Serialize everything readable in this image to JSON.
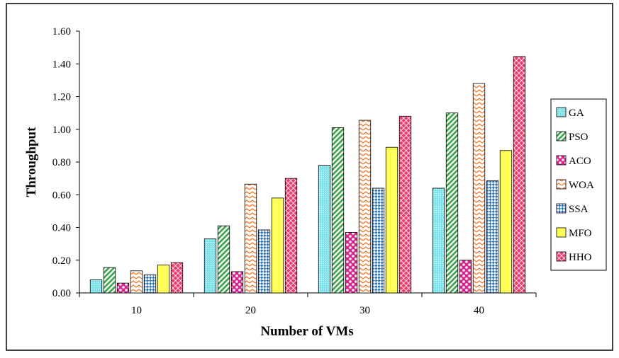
{
  "chart_data": {
    "type": "bar",
    "title": "",
    "xlabel": "Number of VMs",
    "ylabel": "Throughput",
    "categories": [
      "10",
      "20",
      "30",
      "40"
    ],
    "ylim": [
      0,
      1.6
    ],
    "yticks": [
      "0.00",
      "0.20",
      "0.40",
      "0.60",
      "0.80",
      "1.00",
      "1.20",
      "1.40",
      "1.60"
    ],
    "grid": false,
    "legend_position": "right",
    "series": [
      {
        "name": "GA",
        "color": "#7fe3ec",
        "pattern": "fine-dots",
        "values": [
          0.08,
          0.33,
          0.78,
          0.64
        ]
      },
      {
        "name": "PSO",
        "color": "#3aa24a",
        "pattern": "diagonal",
        "values": [
          0.155,
          0.41,
          1.01,
          1.1
        ]
      },
      {
        "name": "ACO",
        "color": "#d6268e",
        "pattern": "big-dots",
        "values": [
          0.06,
          0.13,
          0.37,
          0.2
        ]
      },
      {
        "name": "WOA",
        "color": "#f0843c",
        "pattern": "zigzag",
        "values": [
          0.135,
          0.665,
          1.055,
          1.28
        ]
      },
      {
        "name": "SSA",
        "color": "#2e75b6",
        "pattern": "checker",
        "values": [
          0.11,
          0.385,
          0.64,
          0.685
        ]
      },
      {
        "name": "MFO",
        "color": "#ffff57",
        "pattern": "solid",
        "values": [
          0.17,
          0.58,
          0.89,
          0.87
        ]
      },
      {
        "name": "HHO",
        "color": "#e83c6c",
        "pattern": "crosshatch",
        "values": [
          0.185,
          0.7,
          1.08,
          1.445
        ]
      }
    ]
  }
}
